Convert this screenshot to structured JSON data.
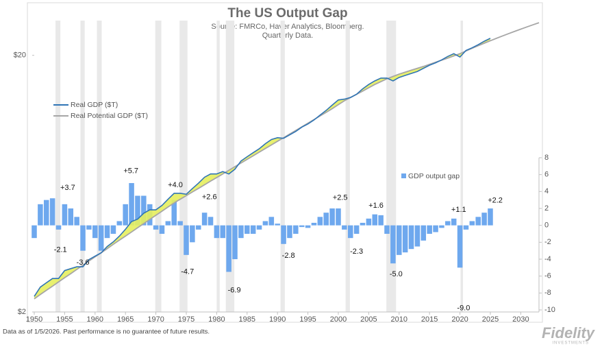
{
  "chart_data": {
    "type": "line",
    "title": "The US Output Gap",
    "subtitle": [
      "Source: FMRCo, Haver Analytics, Bloomberg.",
      "Quarterly Data."
    ],
    "log_scale": true,
    "x": [
      1950,
      1951,
      1952,
      1953,
      1954,
      1955,
      1956,
      1957,
      1958,
      1959,
      1960,
      1961,
      1962,
      1963,
      1964,
      1965,
      1966,
      1967,
      1968,
      1969,
      1970,
      1971,
      1972,
      1973,
      1974,
      1975,
      1976,
      1977,
      1978,
      1979,
      1980,
      1981,
      1982,
      1983,
      1984,
      1985,
      1986,
      1987,
      1988,
      1989,
      1990,
      1991,
      1992,
      1993,
      1994,
      1995,
      1996,
      1997,
      1998,
      1999,
      2000,
      2001,
      2002,
      2003,
      2004,
      2005,
      2006,
      2007,
      2008,
      2009,
      2010,
      2011,
      2012,
      2013,
      2014,
      2015,
      2016,
      2017,
      2018,
      2019,
      2020,
      2021,
      2022,
      2023,
      2024,
      2025
    ],
    "series": [
      {
        "name": "Real GDP ($T)",
        "color": "#2f74b5",
        "values": [
          2.3,
          2.5,
          2.6,
          2.7,
          2.7,
          2.9,
          2.95,
          3.0,
          3.0,
          3.2,
          3.3,
          3.4,
          3.6,
          3.75,
          3.95,
          4.2,
          4.5,
          4.6,
          4.85,
          5.0,
          5.0,
          5.2,
          5.5,
          5.8,
          5.8,
          5.75,
          6.05,
          6.35,
          6.7,
          6.9,
          6.9,
          7.05,
          6.9,
          7.2,
          7.75,
          8.05,
          8.35,
          8.65,
          9.05,
          9.4,
          9.55,
          9.5,
          9.8,
          10.1,
          10.5,
          10.8,
          11.2,
          11.7,
          12.2,
          12.8,
          13.4,
          13.5,
          13.7,
          14.1,
          14.8,
          15.4,
          15.9,
          16.3,
          16.3,
          15.9,
          16.4,
          16.7,
          17.0,
          17.3,
          17.8,
          18.3,
          18.7,
          19.2,
          19.8,
          20.3,
          19.7,
          20.9,
          21.4,
          22.0,
          22.7,
          23.3
        ]
      },
      {
        "name": "Real Potential GDP ($T)",
        "color": "#a6a6a6",
        "x": [
          1950,
          1951,
          1952,
          1953,
          1954,
          1955,
          1956,
          1957,
          1958,
          1959,
          1960,
          1961,
          1962,
          1963,
          1964,
          1965,
          1966,
          1967,
          1968,
          1969,
          1970,
          1971,
          1972,
          1973,
          1974,
          1975,
          1976,
          1977,
          1978,
          1979,
          1980,
          1981,
          1982,
          1983,
          1984,
          1985,
          1986,
          1987,
          1988,
          1989,
          1990,
          1991,
          1992,
          1993,
          1994,
          1995,
          1996,
          1997,
          1998,
          1999,
          2000,
          2001,
          2002,
          2003,
          2004,
          2005,
          2006,
          2007,
          2008,
          2009,
          2010,
          2011,
          2012,
          2013,
          2014,
          2015,
          2016,
          2017,
          2018,
          2019,
          2020,
          2021,
          2022,
          2023,
          2024,
          2025,
          2026,
          2027,
          2028,
          2029,
          2030,
          2031,
          2032,
          2033
        ],
        "values": [
          2.25,
          2.34,
          2.43,
          2.52,
          2.62,
          2.72,
          2.82,
          2.93,
          3.04,
          3.16,
          3.28,
          3.4,
          3.53,
          3.67,
          3.81,
          3.95,
          4.1,
          4.26,
          4.42,
          4.59,
          4.76,
          4.94,
          5.13,
          5.32,
          5.5,
          5.68,
          5.87,
          6.06,
          6.26,
          6.47,
          6.68,
          6.9,
          7.13,
          7.37,
          7.61,
          7.86,
          8.12,
          8.39,
          8.67,
          8.95,
          9.25,
          9.55,
          9.87,
          10.19,
          10.53,
          10.88,
          11.24,
          11.61,
          11.99,
          12.39,
          12.85,
          13.3,
          13.7,
          14.1,
          14.5,
          14.95,
          15.4,
          15.8,
          16.2,
          16.55,
          16.9,
          17.2,
          17.5,
          17.8,
          18.1,
          18.45,
          18.8,
          19.15,
          19.5,
          19.9,
          20.3,
          20.8,
          21.3,
          21.8,
          22.3,
          22.8,
          23.3,
          23.8,
          24.3,
          24.8,
          25.3,
          25.8,
          26.3,
          26.8
        ]
      },
      {
        "name": "GDP output gap",
        "color": "#6ea8ee",
        "type": "bar",
        "axis": "y2",
        "values": [
          -1.5,
          2.5,
          3.0,
          3.2,
          -0.5,
          2.5,
          2.0,
          1.0,
          -3.0,
          -0.5,
          -1.5,
          -3.0,
          -1.5,
          -1.0,
          0.5,
          2.5,
          5.0,
          3.5,
          3.5,
          2.5,
          -0.5,
          -1.0,
          0.5,
          3.0,
          0.5,
          -3.5,
          -2.0,
          -0.5,
          1.5,
          1.0,
          -1.5,
          -1.5,
          -5.5,
          -4.0,
          -1.5,
          -1.0,
          -1.0,
          -0.5,
          0.5,
          1.0,
          0.2,
          -2.2,
          -1.5,
          -1.0,
          -0.2,
          -0.3,
          0.3,
          1.0,
          1.5,
          2.0,
          2.0,
          -0.5,
          -1.5,
          -1.0,
          0.3,
          0.8,
          1.3,
          1.2,
          -1.0,
          -4.5,
          -3.5,
          -3.2,
          -2.8,
          -2.5,
          -1.8,
          -1.0,
          -0.8,
          -0.3,
          0.5,
          0.8,
          -5.0,
          -0.5,
          0.5,
          1.0,
          1.5,
          2.0
        ]
      }
    ],
    "gap_fill_color": "#e6ee5e",
    "xlim": [
      1950,
      2033
    ],
    "xticks": [
      1950,
      1955,
      1960,
      1965,
      1970,
      1975,
      1980,
      1985,
      1990,
      1995,
      2000,
      2005,
      2010,
      2015,
      2020,
      2025,
      2030
    ],
    "ylim": [
      2,
      28
    ],
    "yticks": [
      {
        "value": 2,
        "label": "$2"
      },
      {
        "value": 20,
        "label": "$20"
      }
    ],
    "y2lim": [
      -10,
      8
    ],
    "y2ticks": [
      -10,
      -8,
      -6,
      -4,
      -2,
      0,
      2,
      4,
      6,
      8
    ],
    "shaded_periods": [
      [
        1953.5,
        1954.3
      ],
      [
        1957.6,
        1958.3
      ],
      [
        1960.3,
        1961.1
      ],
      [
        1969.9,
        1970.9
      ],
      [
        1973.9,
        1975.2
      ],
      [
        1980.0,
        1980.5
      ],
      [
        1981.5,
        1982.9
      ],
      [
        1990.5,
        1991.2
      ],
      [
        2001.2,
        2001.9
      ],
      [
        2007.9,
        2009.5
      ],
      [
        2020.1,
        2020.5
      ]
    ],
    "shade_color": "#e9e9e9",
    "annotations": [
      {
        "x": 1955.5,
        "value": 3.7,
        "label": "+3.7"
      },
      {
        "x": 1954.3,
        "value": -2.1,
        "label": "-2.1"
      },
      {
        "x": 1958.0,
        "value": -3.6,
        "label": "-3.6"
      },
      {
        "x": 1965.9,
        "value": 5.7,
        "label": "+5.7"
      },
      {
        "x": 1973.2,
        "value": 4.0,
        "label": "+4.0"
      },
      {
        "x": 1975.2,
        "value": -4.7,
        "label": "-4.7"
      },
      {
        "x": 1978.8,
        "value": 2.6,
        "label": "+2.6"
      },
      {
        "x": 1982.9,
        "value": -6.9,
        "label": "-6.9"
      },
      {
        "x": 1991.8,
        "value": -2.8,
        "label": "-2.8"
      },
      {
        "x": 2000.3,
        "value": 2.5,
        "label": "+2.5"
      },
      {
        "x": 2003.0,
        "value": -2.3,
        "label": "-2.3"
      },
      {
        "x": 2006.2,
        "value": 1.6,
        "label": "+1.6"
      },
      {
        "x": 2009.5,
        "value": -5.0,
        "label": "-5.0"
      },
      {
        "x": 2019.8,
        "value": 1.1,
        "label": "+1.1"
      },
      {
        "x": 2020.6,
        "value": -9.0,
        "label": "-9.0"
      },
      {
        "x": 2025.8,
        "value": 2.2,
        "label": "+2.2"
      }
    ]
  },
  "footnote": "Data as of 1/5/2026. Past performance is no guarantee of future results.",
  "logo": {
    "name": "Fidelity",
    "tagline": "INVESTMENTS"
  }
}
